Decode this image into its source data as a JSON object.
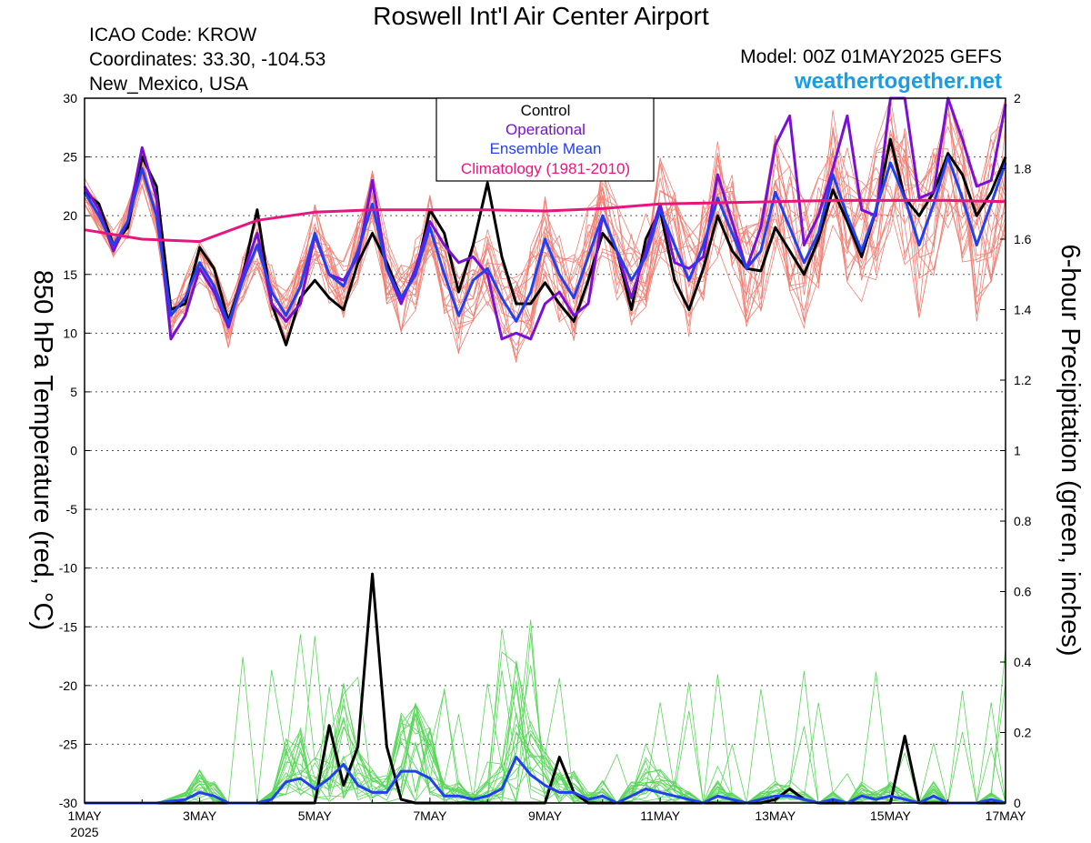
{
  "header": {
    "title": "Roswell Int'l Air Center Airport",
    "icao": "ICAO Code: KROW",
    "coordinates": "Coordinates: 33.30, -104.53",
    "location": "New_Mexico, USA",
    "model": "Model: 00Z 01MAY2025 GEFS",
    "website": "weathertogether.net"
  },
  "colors": {
    "control": "#000000",
    "operational": "#7a10d6",
    "ensemble_mean": "#2140f0",
    "climatology": "#e8157e",
    "members_temp": "#f08075",
    "members_precip": "#5ad65a",
    "website": "#1c9be6"
  },
  "chart_data": {
    "type": "line",
    "title": "Roswell Int'l Air Center Airport",
    "ylabel_left": "850 hPa Temperature (red, °C)",
    "ylabel_right": "6-hour Precipitation (green, inches)",
    "xlabel": "",
    "x_ticks": [
      "1MAY",
      "3MAY",
      "5MAY",
      "7MAY",
      "9MAY",
      "11MAY",
      "13MAY",
      "15MAY",
      "17MAY"
    ],
    "x_tick_days": [
      0,
      2,
      4,
      6,
      8,
      10,
      12,
      14,
      16
    ],
    "x_year_label": "2025",
    "xlim_days": [
      0,
      16
    ],
    "ylim_left": [
      -30,
      30
    ],
    "y_ticks_left": [
      30,
      25,
      20,
      15,
      10,
      5,
      0,
      -5,
      -10,
      -15,
      -20,
      -25,
      -30
    ],
    "ylim_right": [
      0,
      2
    ],
    "y_ticks_right": [
      "2",
      "1.8",
      "1.6",
      "1.4",
      "1.2",
      "1",
      "0.8",
      "0.6",
      "0.4",
      "0.2",
      "0"
    ],
    "grid": "dotted horizontal",
    "legend": {
      "placement": "top-center",
      "entries": [
        "Control",
        "Operational",
        "Ensemble Mean",
        "Climatology (1981-2010)"
      ]
    },
    "temperature_series": [
      {
        "name": "Control",
        "x": [
          0,
          0.25,
          0.5,
          0.75,
          1,
          1.25,
          1.5,
          1.75,
          2,
          2.25,
          2.5,
          2.75,
          3,
          3.25,
          3.5,
          3.75,
          4,
          4.25,
          4.5,
          4.75,
          5,
          5.25,
          5.5,
          5.75,
          6,
          6.25,
          6.5,
          6.75,
          7,
          7.25,
          7.5,
          7.75,
          8,
          8.25,
          8.5,
          8.75,
          9,
          9.25,
          9.5,
          9.75,
          10,
          10.25,
          10.5,
          10.75,
          11,
          11.25,
          11.5,
          11.75,
          12,
          12.25,
          12.5,
          12.75,
          13,
          13.25,
          13.5,
          13.75,
          14,
          14.25,
          14.5,
          14.75,
          15,
          15.25,
          15.5,
          15.75,
          16
        ],
        "y": [
          22,
          21,
          17.5,
          19,
          25,
          22.5,
          12,
          12.5,
          17.3,
          15.5,
          11,
          15,
          20.5,
          12.5,
          9,
          13,
          14.5,
          13,
          12,
          16,
          18.5,
          16,
          13,
          15,
          20.5,
          18.5,
          13.5,
          17.5,
          22.8,
          16.5,
          12.5,
          12.5,
          14.3,
          12.5,
          11,
          14.5,
          18.5,
          17,
          12,
          18,
          20.5,
          14.5,
          12,
          15.5,
          20,
          17,
          15.5,
          15.3,
          19,
          17,
          15,
          18,
          22.2,
          19.5,
          16.5,
          20.5,
          26.5,
          21.5,
          20,
          22,
          25.3,
          23.5,
          20,
          22,
          25
        ]
      },
      {
        "name": "Operational",
        "x": [
          0,
          0.25,
          0.5,
          0.75,
          1,
          1.25,
          1.5,
          1.75,
          2,
          2.25,
          2.5,
          2.75,
          3,
          3.25,
          3.5,
          3.75,
          4,
          4.25,
          4.5,
          4.75,
          5,
          5.25,
          5.5,
          5.75,
          6,
          6.25,
          6.5,
          6.75,
          7,
          7.25,
          7.5,
          7.75,
          8,
          8.25,
          8.5,
          8.75,
          9,
          9.25,
          9.5,
          9.75,
          10,
          10.25,
          10.5,
          10.75,
          11,
          11.25,
          11.5,
          11.75,
          12,
          12.25,
          12.5,
          12.75,
          13,
          13.25,
          13.5,
          13.75,
          14,
          14.25,
          14.5,
          14.75,
          15,
          15.25,
          15.5,
          15.75,
          16
        ],
        "y": [
          22.5,
          20.5,
          17,
          19.5,
          25.8,
          21.5,
          9.5,
          11.5,
          15.5,
          13.5,
          10.5,
          15,
          18.5,
          12.5,
          11,
          12.5,
          18.3,
          15,
          14.5,
          16.5,
          23,
          15.5,
          12.5,
          15.5,
          19.5,
          17.5,
          16,
          16.5,
          15,
          9.5,
          10,
          9.5,
          12.5,
          13.5,
          11.5,
          12.5,
          20,
          17,
          13,
          17,
          21,
          16,
          15.5,
          16.5,
          23.5,
          19.5,
          15.5,
          19,
          26,
          28.5,
          17.5,
          20,
          24,
          28.5,
          20.5,
          20,
          30.5,
          30.5,
          21.5,
          22,
          30.5,
          26.5,
          22.5,
          23,
          29.5
        ]
      },
      {
        "name": "Ensemble Mean",
        "x": [
          0,
          0.25,
          0.5,
          0.75,
          1,
          1.25,
          1.5,
          1.75,
          2,
          2.25,
          2.5,
          2.75,
          3,
          3.25,
          3.5,
          3.75,
          4,
          4.25,
          4.5,
          4.75,
          5,
          5.25,
          5.5,
          5.75,
          6,
          6.25,
          6.5,
          6.75,
          7,
          7.25,
          7.5,
          7.75,
          8,
          8.25,
          8.5,
          8.75,
          9,
          9.25,
          9.5,
          9.75,
          10,
          10.25,
          10.5,
          10.75,
          11,
          11.25,
          11.5,
          11.75,
          12,
          12.25,
          12.5,
          12.75,
          13,
          13.25,
          13.5,
          13.75,
          14,
          14.25,
          14.5,
          14.75,
          15,
          15.25,
          15.5,
          15.75,
          16
        ],
        "y": [
          22,
          20,
          17.5,
          19.5,
          24,
          20,
          11.5,
          13,
          16,
          14,
          10.8,
          14.5,
          17.5,
          13.5,
          11.5,
          14,
          18.5,
          15,
          14,
          17,
          21,
          15.5,
          13,
          15,
          19,
          15,
          11.5,
          14.5,
          15.5,
          13,
          11,
          13.5,
          18,
          15,
          13,
          16.5,
          20,
          17,
          14.5,
          16.5,
          20.5,
          17.5,
          14.5,
          17.5,
          21.5,
          18.5,
          15.5,
          17,
          22,
          19,
          16,
          18.5,
          23.5,
          20,
          17,
          20.5,
          24.5,
          21.5,
          17.5,
          21,
          25,
          21.5,
          17.5,
          21,
          24.5
        ]
      },
      {
        "name": "Climatology (1981-2010)",
        "x": [
          0,
          1,
          2,
          3,
          4,
          5,
          6,
          7,
          8,
          9,
          10,
          11,
          12,
          13,
          14,
          15,
          16
        ],
        "y": [
          18.8,
          18,
          17.8,
          19.6,
          20.3,
          20.5,
          20.5,
          20.5,
          20.4,
          20.6,
          21,
          21.1,
          21.2,
          21.3,
          21.3,
          21.3,
          21.2
        ]
      }
    ],
    "precipitation_series": [
      {
        "name": "Control",
        "x": [
          0,
          2,
          4,
          4.25,
          4.5,
          4.75,
          5,
          5.25,
          5.5,
          5.75,
          6,
          6.25,
          6.5,
          6.75,
          7,
          7.25,
          7.5,
          7.75,
          8,
          8.25,
          8.5,
          8.75,
          9,
          11,
          11.75,
          12,
          12.25,
          12.5,
          12.75,
          13,
          13.75,
          14,
          14.25,
          14.5,
          14.75,
          15,
          16
        ],
        "y": [
          0,
          0,
          0,
          0.22,
          0.05,
          0.16,
          0.65,
          0.16,
          0.01,
          0,
          0,
          0,
          0,
          0,
          0,
          0,
          0,
          0,
          0,
          0.13,
          0.03,
          0,
          0,
          0,
          0,
          0.01,
          0.04,
          0.01,
          0,
          0,
          0,
          0,
          0.19,
          0,
          0,
          0,
          0
        ]
      },
      {
        "name": "Ensemble Mean",
        "x": [
          0,
          1.25,
          1.75,
          2,
          2.25,
          2.5,
          2.75,
          3,
          3.25,
          3.5,
          3.75,
          4,
          4.25,
          4.5,
          4.75,
          5,
          5.25,
          5.5,
          5.75,
          6,
          6.25,
          6.5,
          6.75,
          7,
          7.25,
          7.5,
          7.75,
          8,
          8.25,
          8.5,
          8.75,
          9,
          9.25,
          9.5,
          9.75,
          10,
          10.25,
          10.5,
          10.75,
          11,
          11.25,
          11.5,
          11.75,
          12,
          12.25,
          12.5,
          12.75,
          13,
          13.25,
          13.5,
          13.75,
          14,
          14.25,
          14.5,
          14.75,
          15,
          15.25,
          15.5,
          15.75,
          16
        ],
        "y": [
          0,
          0,
          0.01,
          0.03,
          0.02,
          0,
          0,
          0,
          0.01,
          0.06,
          0.07,
          0.04,
          0.07,
          0.11,
          0.05,
          0.03,
          0.03,
          0.09,
          0.09,
          0.07,
          0.02,
          0.02,
          0.01,
          0.02,
          0.04,
          0.13,
          0.08,
          0.05,
          0.03,
          0.03,
          0.01,
          0.02,
          0,
          0.02,
          0.04,
          0.03,
          0.02,
          0.01,
          0,
          0.02,
          0.01,
          0,
          0.01,
          0.02,
          0.02,
          0.01,
          0,
          0.01,
          0,
          0.02,
          0.01,
          0.02,
          0.01,
          0,
          0.02,
          0,
          0,
          0,
          0.01,
          0
        ]
      }
    ],
    "ensemble_members": "20 unlabeled members: thin red lines for 850 hPa temperature, thin green lines for 6-hour precipitation"
  }
}
